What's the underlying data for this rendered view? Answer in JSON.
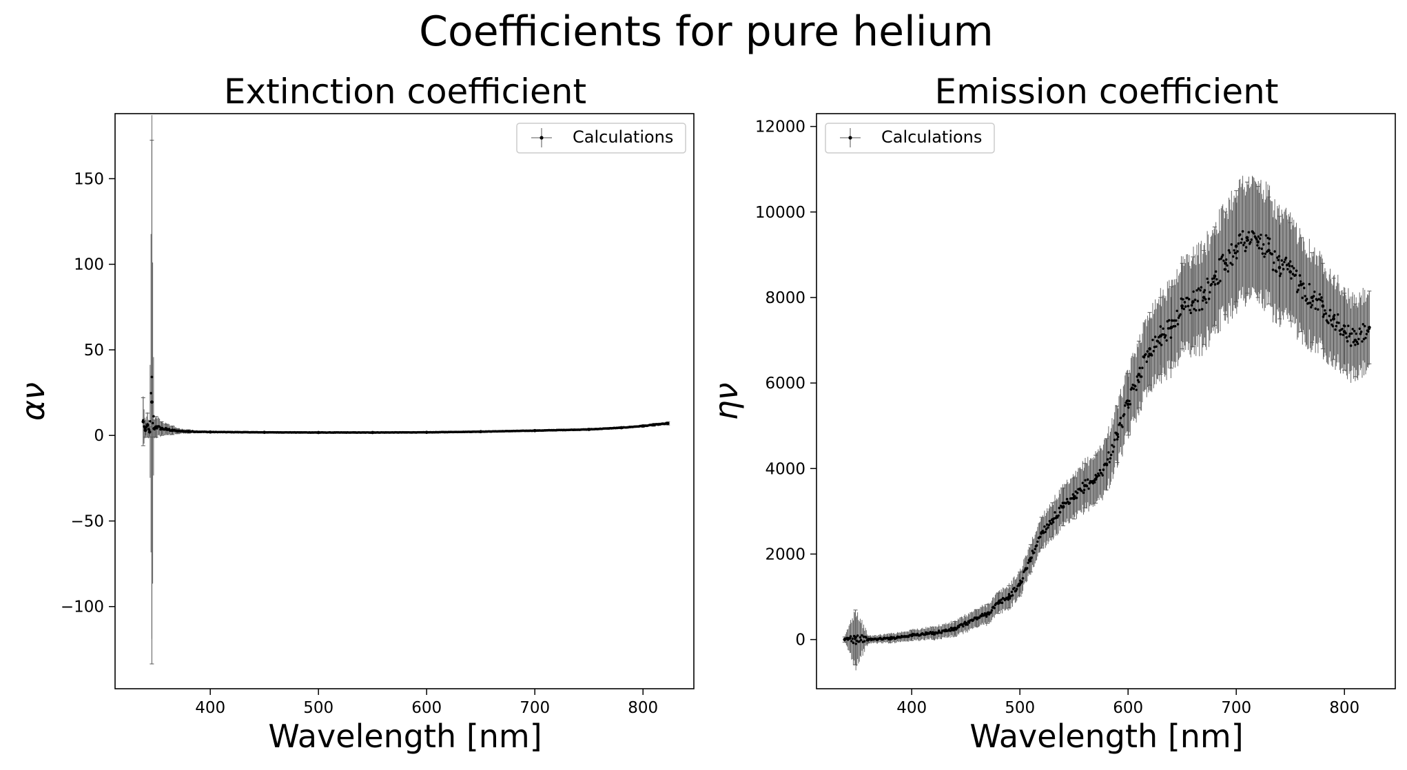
{
  "figure": {
    "title": "Coefficients for pure helium",
    "colors": {
      "points": "#000000",
      "errorbars": "#555555",
      "legend_border": "#cccccc"
    }
  },
  "chart_data": [
    {
      "type": "scatter",
      "title": "Extinction coefficient",
      "xlabel": "Wavelength [nm]",
      "ylabel": "αν",
      "xlim": [
        312,
        847
      ],
      "ylim": [
        -148,
        188
      ],
      "xticks": [
        400,
        500,
        600,
        700,
        800
      ],
      "yticks": [
        -100,
        -50,
        0,
        50,
        100,
        150
      ],
      "ytick_labels": [
        "−100",
        "−50",
        "0",
        "50",
        "100",
        "150"
      ],
      "legend": {
        "label": "Calculations",
        "position": "upper right"
      },
      "series": [
        {
          "name": "Calculations",
          "x": [
            338,
            340,
            342,
            344,
            346,
            348,
            350,
            355,
            360,
            365,
            370,
            380,
            400,
            450,
            500,
            550,
            600,
            650,
            700,
            750,
            780,
            800,
            810,
            823
          ],
          "y": [
            8,
            3,
            6,
            2,
            19.5,
            4,
            5,
            4,
            3.5,
            3,
            2.5,
            2.3,
            2,
            1.8,
            1.7,
            1.7,
            1.8,
            2.2,
            2.8,
            3.5,
            4.5,
            5.5,
            6.2,
            7
          ],
          "yerr": [
            14,
            4,
            7,
            3,
            153,
            5,
            6,
            4,
            3,
            2.5,
            1.5,
            1,
            0.5,
            0.3,
            0.3,
            0.3,
            0.3,
            0.3,
            0.4,
            0.5,
            0.6,
            0.7,
            0.8,
            0.9
          ]
        }
      ]
    },
    {
      "type": "scatter",
      "title": "Emission coefficient",
      "xlabel": "Wavelength [nm]",
      "ylabel": "ην",
      "xlim": [
        312,
        847
      ],
      "ylim": [
        -1150,
        12300
      ],
      "xticks": [
        400,
        500,
        600,
        700,
        800
      ],
      "yticks": [
        0,
        2000,
        4000,
        6000,
        8000,
        10000,
        12000
      ],
      "ytick_labels": [
        "0",
        "2000",
        "4000",
        "6000",
        "8000",
        "10000",
        "12000"
      ],
      "legend": {
        "label": "Calculations",
        "position": "upper left"
      },
      "series": [
        {
          "name": "Calculations",
          "x": [
            338,
            348,
            360,
            380,
            400,
            420,
            440,
            460,
            470,
            480,
            490,
            500,
            510,
            520,
            530,
            540,
            550,
            560,
            570,
            580,
            590,
            600,
            610,
            620,
            630,
            640,
            650,
            660,
            670,
            680,
            690,
            700,
            710,
            720,
            730,
            740,
            750,
            760,
            770,
            780,
            790,
            800,
            810,
            823
          ],
          "y": [
            0,
            50,
            0,
            30,
            100,
            150,
            250,
            500,
            600,
            850,
            1000,
            1300,
            1900,
            2500,
            2800,
            3100,
            3300,
            3600,
            3750,
            4100,
            4800,
            5500,
            6200,
            6800,
            7100,
            7300,
            7800,
            7900,
            8000,
            8500,
            8800,
            9200,
            9400,
            9300,
            9100,
            8700,
            8600,
            8300,
            8000,
            7800,
            7500,
            7200,
            7000,
            7300
          ],
          "yerr": [
            60,
            640,
            80,
            100,
            120,
            140,
            170,
            200,
            220,
            240,
            260,
            280,
            320,
            360,
            400,
            440,
            480,
            520,
            560,
            600,
            660,
            720,
            780,
            850,
            900,
            950,
            1000,
            1050,
            1100,
            1150,
            1200,
            1300,
            1300,
            1300,
            1250,
            1200,
            1150,
            1100,
            1050,
            1000,
            950,
            900,
            850,
            850
          ]
        }
      ]
    }
  ]
}
